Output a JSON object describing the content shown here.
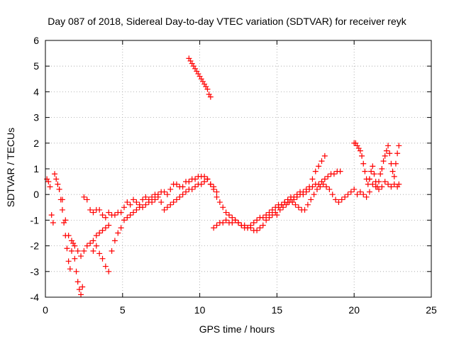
{
  "chart_data": {
    "type": "scatter",
    "title": "Day 087 of 2018, Sidereal Day-to-day VTEC variation (SDTVAR) for receiver reyk",
    "xlabel": "GPS time / hours",
    "ylabel": "SDTVAR / TECUs",
    "xlim": [
      0,
      25
    ],
    "ylim": [
      -4,
      6
    ],
    "xticks": [
      0,
      5,
      10,
      15,
      20,
      25
    ],
    "yticks": [
      -4,
      -3,
      -2,
      -1,
      0,
      1,
      2,
      3,
      4,
      5,
      6
    ],
    "xtick_labels": [
      "0",
      "5",
      "10",
      "15",
      "20",
      "25"
    ],
    "ytick_labels": [
      "-4",
      "-3",
      "-2",
      "-1",
      "0",
      "1",
      "2",
      "3",
      "4",
      "5",
      "6"
    ],
    "grid": true,
    "marker": "plus",
    "color": "#ff0000",
    "series": [
      {
        "x": [
          0.1,
          0.2,
          0.3,
          0.4,
          0.5,
          0.6,
          0.7,
          0.8,
          0.9,
          1.0,
          1.1,
          1.2,
          1.3,
          1.4,
          1.5,
          1.6,
          1.7,
          1.8,
          1.9,
          2.0,
          2.1,
          2.2,
          2.3,
          2.4
        ],
        "y": [
          0.6,
          0.5,
          0.3,
          -0.8,
          -1.1,
          0.8,
          0.6,
          0.4,
          0.2,
          -0.2,
          -0.6,
          -1.1,
          -1.6,
          -2.1,
          -2.6,
          -2.9,
          -2.2,
          -1.9,
          -2.5,
          -3.0,
          -3.4,
          -3.7,
          -3.9,
          -3.6
        ]
      },
      {
        "x": [
          0.9,
          1.1,
          1.3,
          1.5,
          1.7,
          1.9,
          2.1,
          2.3,
          2.5,
          2.7,
          2.9,
          3.1,
          3.3,
          3.5,
          3.7,
          3.9,
          4.1
        ],
        "y": [
          0.2,
          -0.2,
          -1.0,
          -1.6,
          -1.8,
          -2.0,
          -2.2,
          -2.4,
          -2.2,
          -2.0,
          -1.9,
          -1.8,
          -1.6,
          -1.5,
          -1.4,
          -1.3,
          -1.2
        ]
      },
      {
        "x": [
          2.5,
          2.7,
          2.9,
          3.1,
          3.3,
          3.5,
          3.7,
          3.9,
          4.1,
          4.3,
          4.5,
          4.7,
          4.9,
          5.1,
          5.3,
          5.5,
          5.7,
          5.9,
          6.1,
          6.3,
          6.5,
          6.7,
          6.9,
          7.1,
          7.3,
          7.5,
          7.7,
          7.9,
          8.1,
          8.3,
          8.5,
          8.7,
          8.9,
          9.1,
          9.3,
          9.5,
          9.7,
          9.9,
          10.1,
          10.3,
          10.5,
          10.7,
          10.9,
          11.1
        ],
        "y": [
          -0.1,
          -0.2,
          -0.6,
          -0.7,
          -0.6,
          -0.6,
          -0.8,
          -0.9,
          -0.7,
          -0.8,
          -0.8,
          -0.7,
          -0.7,
          -0.5,
          -0.3,
          -0.4,
          -0.2,
          -0.3,
          -0.4,
          -0.2,
          -0.1,
          -0.2,
          -0.1,
          0.0,
          0.0,
          0.1,
          0.1,
          0.0,
          0.2,
          0.4,
          0.4,
          0.3,
          0.3,
          0.5,
          0.5,
          0.6,
          0.6,
          0.7,
          0.7,
          0.7,
          0.6,
          0.4,
          0.3,
          0.1
        ]
      },
      {
        "x": [
          3.1,
          3.3,
          3.5,
          3.7,
          3.9,
          4.1,
          4.3,
          4.5,
          4.7,
          4.9,
          5.1,
          5.3,
          5.5,
          5.7,
          5.9,
          6.1,
          6.3,
          6.5,
          6.7,
          6.9,
          7.1,
          7.3,
          7.5,
          7.7,
          7.9,
          8.1,
          8.3,
          8.5,
          8.7,
          8.9,
          9.1,
          9.3,
          9.5,
          9.7,
          9.9,
          10.1,
          10.3,
          10.5
        ],
        "y": [
          -2.2,
          -2.0,
          -2.3,
          -2.5,
          -2.8,
          -3.0,
          -2.2,
          -1.8,
          -1.5,
          -1.3,
          -1.0,
          -0.9,
          -0.8,
          -0.7,
          -0.6,
          -0.5,
          -0.5,
          -0.4,
          -0.3,
          -0.3,
          -0.2,
          -0.1,
          -0.3,
          -0.6,
          -0.5,
          -0.4,
          -0.3,
          -0.2,
          -0.1,
          0.0,
          0.1,
          0.2,
          0.2,
          0.3,
          0.4,
          0.4,
          0.5,
          0.6
        ]
      },
      {
        "x": [
          9.3,
          9.4,
          9.5,
          9.6,
          9.7,
          9.8,
          9.9,
          10.0,
          10.1,
          10.2,
          10.3,
          10.4,
          10.5,
          10.6,
          10.7
        ],
        "y": [
          5.3,
          5.2,
          5.1,
          5.0,
          4.9,
          4.8,
          4.7,
          4.6,
          4.5,
          4.4,
          4.3,
          4.2,
          4.1,
          3.9,
          3.8
        ]
      },
      {
        "x": [
          10.5,
          10.7,
          10.9,
          11.1,
          11.3,
          11.5,
          11.7,
          11.9,
          12.1,
          12.3,
          12.5,
          12.7,
          12.9,
          13.1,
          13.3,
          13.5,
          13.7,
          13.9,
          14.1,
          14.3,
          14.5,
          14.7,
          14.9,
          15.1,
          15.3,
          15.5,
          15.7,
          15.9,
          16.1,
          16.3,
          16.5,
          16.7,
          16.9,
          17.1,
          17.3,
          17.5,
          17.7,
          17.9,
          18.1
        ],
        "y": [
          0.6,
          0.4,
          0.2,
          -0.1,
          -0.3,
          -0.5,
          -0.7,
          -0.8,
          -0.9,
          -1.0,
          -1.1,
          -1.2,
          -1.2,
          -1.3,
          -1.3,
          -1.4,
          -1.4,
          -1.3,
          -1.2,
          -1.0,
          -0.9,
          -0.8,
          -0.7,
          -0.5,
          -0.4,
          -0.3,
          -0.2,
          -0.1,
          -0.1,
          0.0,
          0.1,
          0.1,
          0.2,
          0.3,
          0.6,
          0.9,
          1.1,
          1.3,
          1.5
        ]
      },
      {
        "x": [
          10.9,
          11.1,
          11.3,
          11.5,
          11.7,
          11.9,
          12.1,
          12.3,
          12.5,
          12.7,
          12.9,
          13.1,
          13.3,
          13.5,
          13.7,
          13.9,
          14.1,
          14.3,
          14.5,
          14.7,
          14.9,
          15.1,
          15.3,
          15.5,
          15.7,
          15.9,
          16.1,
          16.3,
          16.5,
          16.7,
          16.9,
          17.1,
          17.3,
          17.5,
          17.7,
          17.9,
          18.1,
          18.3,
          18.5,
          18.7,
          18.9,
          19.1
        ],
        "y": [
          -1.3,
          -1.2,
          -1.1,
          -1.1,
          -1.0,
          -1.1,
          -1.1,
          -1.0,
          -1.1,
          -1.2,
          -1.3,
          -1.3,
          -1.2,
          -1.1,
          -1.0,
          -0.9,
          -0.9,
          -0.8,
          -0.7,
          -0.6,
          -0.5,
          -0.4,
          -0.4,
          -0.3,
          -0.3,
          -0.2,
          -0.2,
          -0.1,
          0.0,
          0.0,
          0.1,
          0.2,
          0.3,
          0.4,
          0.4,
          0.5,
          0.6,
          0.7,
          0.8,
          0.8,
          0.9,
          0.9
        ]
      },
      {
        "x": [
          15.0,
          15.2,
          15.4,
          15.6,
          15.8,
          16.0,
          16.2,
          16.4,
          16.6,
          16.8,
          17.0,
          17.2,
          17.4,
          17.6,
          17.8,
          18.0,
          18.2,
          18.4,
          18.6,
          18.8,
          19.0,
          19.2,
          19.4,
          19.6,
          19.8,
          20.0,
          20.2,
          20.4,
          20.6,
          20.8,
          21.0
        ],
        "y": [
          -0.8,
          -0.6,
          -0.5,
          -0.4,
          -0.3,
          -0.3,
          -0.4,
          -0.5,
          -0.6,
          -0.6,
          -0.4,
          -0.2,
          0.0,
          0.2,
          0.3,
          0.4,
          0.3,
          0.2,
          0.0,
          -0.2,
          -0.3,
          -0.2,
          -0.1,
          0.0,
          0.1,
          0.2,
          0.0,
          0.1,
          0.0,
          -0.1,
          0.1
        ]
      },
      {
        "x": [
          20.0,
          20.1,
          20.2,
          20.3,
          20.4,
          20.5,
          20.6,
          20.7,
          20.8,
          20.9,
          21.0,
          21.1,
          21.2,
          21.3,
          21.4,
          21.5,
          21.6,
          21.7,
          21.8,
          21.9,
          22.0,
          22.1,
          22.2,
          22.3,
          22.4,
          22.5,
          22.6,
          22.7,
          22.8,
          22.9
        ],
        "y": [
          2.0,
          2.0,
          1.9,
          1.8,
          1.7,
          1.5,
          1.2,
          0.9,
          0.6,
          0.4,
          0.6,
          0.9,
          1.1,
          0.8,
          0.5,
          0.3,
          0.5,
          0.8,
          1.0,
          1.3,
          1.5,
          1.7,
          1.9,
          1.6,
          1.2,
          0.9,
          0.7,
          1.2,
          1.6,
          1.9
        ]
      },
      {
        "x": [
          21.0,
          21.2,
          21.4,
          21.6,
          21.8,
          22.0,
          22.2,
          22.4,
          22.6,
          22.8,
          22.9
        ],
        "y": [
          0.6,
          0.4,
          0.3,
          0.2,
          0.3,
          0.5,
          0.4,
          0.3,
          0.4,
          0.3,
          0.4
        ]
      }
    ]
  }
}
